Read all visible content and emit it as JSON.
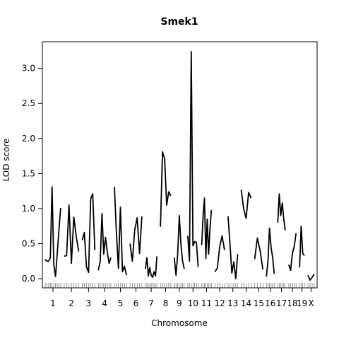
{
  "chart_data": {
    "type": "line",
    "title": "Smek1",
    "xlabel": "Chromosome",
    "ylabel": "LOD score",
    "ylim": [
      -0.13,
      3.38
    ],
    "yticks": [
      0.0,
      0.5,
      1.0,
      1.5,
      2.0,
      2.5,
      3.0
    ],
    "ytick_labels": [
      "0.0",
      "0.5",
      "1.0",
      "1.5",
      "2.0",
      "2.5",
      "3.0"
    ],
    "grid": false,
    "chromosomes": [
      {
        "name": "1",
        "label": "1",
        "length": 195,
        "values": [
          0.28,
          0.25,
          0.25,
          0.3,
          1.31,
          0.2,
          0.03,
          0.35,
          0.7,
          1.01
        ]
      },
      {
        "name": "2",
        "label": "2",
        "length": 182,
        "values": [
          0.32,
          0.33,
          1.05,
          0.22,
          0.88,
          0.6,
          0.39
        ]
      },
      {
        "name": "3",
        "label": "3",
        "length": 160,
        "values": [
          0.55,
          0.66,
          0.17,
          0.09,
          1.14,
          1.21,
          0.41
        ]
      },
      {
        "name": "4",
        "label": "4",
        "length": 157,
        "values": [
          0.12,
          0.25,
          0.93,
          0.35,
          0.59,
          0.38,
          0.22,
          0.3
        ]
      },
      {
        "name": "5",
        "label": "5",
        "length": 152,
        "values": [
          1.31,
          0.66,
          0.15,
          1.02,
          0.1,
          0.18,
          0.05
        ]
      },
      {
        "name": "6",
        "label": "6",
        "length": 150,
        "values": [
          0.5,
          0.25,
          0.7,
          0.87,
          0.36,
          0.89
        ]
      },
      {
        "name": "7",
        "label": "7",
        "length": 145,
        "values": [
          0.14,
          0.3,
          0.04,
          0.16,
          0.05,
          0.02,
          0.1,
          0.04,
          0.32
        ]
      },
      {
        "name": "8",
        "label": "8",
        "length": 130,
        "values": [
          0.74,
          1.81,
          1.71,
          1.05,
          1.24,
          1.18
        ]
      },
      {
        "name": "9",
        "label": "9",
        "length": 125,
        "values": [
          0.3,
          0.05,
          0.34,
          0.9,
          0.49,
          0.25,
          0.14
        ]
      },
      {
        "name": "10",
        "label": "10",
        "length": 131,
        "values": [
          0.61,
          0.25,
          3.24,
          0.47,
          0.53,
          0.52,
          0.17
        ]
      },
      {
        "name": "11",
        "label": "11",
        "length": 122,
        "values": [
          0.48,
          0.9,
          1.15,
          0.29,
          0.85,
          0.35,
          0.72,
          0.98
        ]
      },
      {
        "name": "12",
        "label": "12",
        "length": 121,
        "values": [
          0.1,
          0.15,
          0.46,
          0.61,
          0.41
        ]
      },
      {
        "name": "13",
        "label": "13",
        "length": 121,
        "values": [
          0.89,
          0.5,
          0.08,
          0.24,
          0.0,
          0.35
        ]
      },
      {
        "name": "14",
        "label": "14",
        "length": 125,
        "values": [
          1.27,
          1.0,
          0.86,
          1.23,
          1.15
        ]
      },
      {
        "name": "15",
        "label": "15",
        "length": 104,
        "values": [
          0.28,
          0.58,
          0.4,
          0.13
        ]
      },
      {
        "name": "16",
        "label": "16",
        "length": 98,
        "values": [
          0.03,
          0.25,
          0.72,
          0.45,
          0.3,
          0.07
        ]
      },
      {
        "name": "17",
        "label": "17",
        "length": 95,
        "values": [
          0.8,
          1.21,
          0.9,
          1.08,
          0.85,
          0.69
        ]
      },
      {
        "name": "18",
        "label": "18",
        "length": 91,
        "values": [
          0.2,
          0.12,
          0.36,
          0.46,
          0.65
        ]
      },
      {
        "name": "19",
        "label": "19",
        "length": 61,
        "values": [
          0.16,
          0.75,
          0.36,
          0.33
        ]
      },
      {
        "name": "X",
        "label": "X",
        "length": 80,
        "values": [
          0.05,
          -0.02,
          0.02,
          0.07
        ]
      }
    ]
  }
}
